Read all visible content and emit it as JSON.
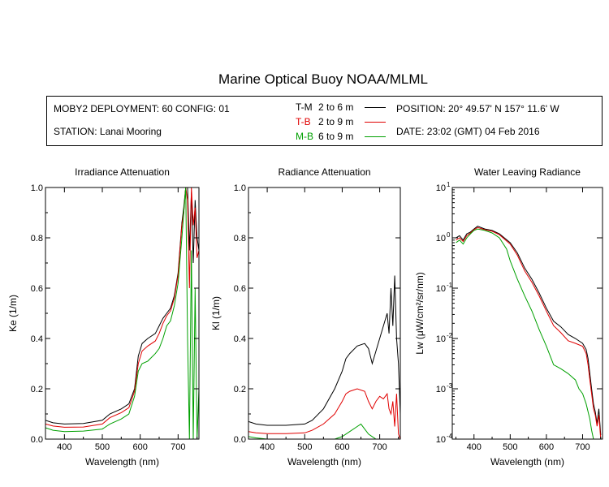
{
  "title": "Marine Optical Buoy NOAA/MLML",
  "info": {
    "deployment": "MOBY2 DEPLOYMENT: 60 CONFIG: 01",
    "station": "STATION: Lanai Mooring",
    "position": "POSITION: 20° 49.57' N   157° 11.6' W",
    "date": "DATE: 23:02 (GMT) 04 Feb 2016",
    "legend": [
      {
        "code": "T-M",
        "range": "2 to 6  m",
        "color": "#000000"
      },
      {
        "code": "T-B",
        "range": "2 to 9  m",
        "color": "#e00000"
      },
      {
        "code": "M-B",
        "range": "6 to 9  m",
        "color": "#00a000"
      }
    ]
  },
  "chart_data": [
    {
      "type": "line",
      "title": "Irradiance Attenuation",
      "xlabel": "Wavelength (nm)",
      "ylabel": "Ke  (1/m)",
      "xlim": [
        350,
        755
      ],
      "ylim": [
        0,
        1
      ],
      "xticks": [
        "400",
        "500",
        "600",
        "700"
      ],
      "yticks": [
        "0.0",
        "0.2",
        "0.4",
        "0.6",
        "0.8",
        "1.0"
      ],
      "series": [
        {
          "color": "#000000",
          "x": [
            350,
            370,
            400,
            450,
            500,
            520,
            550,
            570,
            585,
            595,
            605,
            620,
            640,
            650,
            660,
            670,
            680,
            690,
            700,
            710,
            715,
            720,
            725,
            730,
            735,
            740,
            745,
            750,
            755
          ],
          "y": [
            0.075,
            0.065,
            0.06,
            0.062,
            0.075,
            0.1,
            0.12,
            0.14,
            0.2,
            0.33,
            0.38,
            0.4,
            0.42,
            0.45,
            0.48,
            0.5,
            0.52,
            0.57,
            0.66,
            0.86,
            0.92,
            1.0,
            1.0,
            0.75,
            0.98,
            0.7,
            0.95,
            0.8,
            0.75
          ]
        },
        {
          "color": "#e00000",
          "x": [
            350,
            370,
            400,
            450,
            500,
            520,
            550,
            570,
            585,
            595,
            605,
            620,
            640,
            650,
            660,
            670,
            680,
            690,
            700,
            710,
            715,
            720,
            725,
            730,
            735,
            740,
            745,
            750,
            755
          ],
          "y": [
            0.06,
            0.052,
            0.047,
            0.048,
            0.06,
            0.085,
            0.105,
            0.125,
            0.19,
            0.3,
            0.35,
            0.37,
            0.39,
            0.42,
            0.46,
            0.49,
            0.51,
            0.56,
            0.65,
            0.85,
            0.9,
            1.0,
            0.95,
            0.6,
            1.0,
            0.85,
            0.92,
            0.72,
            0.75
          ]
        },
        {
          "color": "#00a000",
          "x": [
            350,
            370,
            400,
            450,
            500,
            520,
            550,
            570,
            585,
            595,
            605,
            620,
            640,
            650,
            660,
            670,
            680,
            690,
            700,
            710,
            715,
            720,
            725,
            730,
            735,
            740,
            745,
            750,
            755
          ],
          "y": [
            0.045,
            0.035,
            0.03,
            0.032,
            0.04,
            0.06,
            0.08,
            0.1,
            0.17,
            0.27,
            0.3,
            0.31,
            0.34,
            0.36,
            0.4,
            0.45,
            0.47,
            0.53,
            0.62,
            0.8,
            0.9,
            1.0,
            0.4,
            0.0,
            0.75,
            0.0,
            0.6,
            0.0,
            0.2
          ]
        }
      ]
    },
    {
      "type": "line",
      "title": "Radiance Attenuation",
      "xlabel": "Wavelength (nm)",
      "ylabel": "Kl  (1/m)",
      "xlim": [
        350,
        755
      ],
      "ylim": [
        0,
        1
      ],
      "xticks": [
        "400",
        "500",
        "600",
        "700"
      ],
      "yticks": [
        "0.0",
        "0.2",
        "0.4",
        "0.6",
        "0.8",
        "1.0"
      ],
      "series": [
        {
          "color": "#000000",
          "x": [
            350,
            370,
            400,
            450,
            500,
            520,
            550,
            580,
            600,
            610,
            620,
            640,
            660,
            670,
            680,
            690,
            700,
            710,
            720,
            725,
            730,
            735,
            740,
            745,
            750,
            755
          ],
          "y": [
            0.07,
            0.06,
            0.055,
            0.055,
            0.06,
            0.075,
            0.12,
            0.2,
            0.27,
            0.32,
            0.34,
            0.37,
            0.38,
            0.36,
            0.3,
            0.35,
            0.4,
            0.45,
            0.5,
            0.42,
            0.6,
            0.45,
            0.65,
            0.4,
            0.3,
            0.1
          ]
        },
        {
          "color": "#e00000",
          "x": [
            350,
            370,
            400,
            450,
            500,
            520,
            550,
            580,
            600,
            610,
            620,
            640,
            660,
            670,
            680,
            690,
            700,
            710,
            720,
            725,
            730,
            735,
            740,
            745,
            750,
            755
          ],
          "y": [
            0.03,
            0.025,
            0.022,
            0.022,
            0.025,
            0.035,
            0.06,
            0.1,
            0.15,
            0.18,
            0.19,
            0.2,
            0.19,
            0.15,
            0.12,
            0.15,
            0.17,
            0.16,
            0.18,
            0.12,
            0.1,
            0.15,
            0.05,
            0.18,
            0.02,
            0.0
          ]
        },
        {
          "color": "#00a000",
          "x": [
            350,
            370,
            400,
            450,
            500,
            520,
            550,
            580,
            600,
            620,
            640,
            650,
            660,
            670,
            680,
            690,
            700,
            710,
            720,
            730,
            740,
            755
          ],
          "y": [
            0.01,
            0.005,
            0.0,
            0.0,
            0.0,
            0.0,
            0.0,
            0.0,
            0.01,
            0.03,
            0.05,
            0.06,
            0.04,
            0.02,
            0.01,
            0.0,
            0.0,
            0.0,
            0.0,
            0.0,
            0.0,
            0.0
          ]
        }
      ]
    },
    {
      "type": "line",
      "title": "Water Leaving Radiance",
      "xlabel": "Wavelength (nm)",
      "ylabel": "Lw  (μW/cm²/sr/nm)",
      "yscale": "log",
      "xlim": [
        340,
        755
      ],
      "ylim": [
        0.0001,
        10
      ],
      "xticks": [
        "400",
        "500",
        "600",
        "700"
      ],
      "ytick_mantissa": "10",
      "ytick_exponents": [
        "-4",
        "-3",
        "-2",
        "-1",
        "0",
        "1"
      ],
      "series": [
        {
          "color": "#000000",
          "x": [
            350,
            360,
            370,
            380,
            390,
            400,
            410,
            430,
            450,
            470,
            500,
            520,
            540,
            560,
            580,
            600,
            620,
            640,
            660,
            680,
            700,
            710,
            715,
            720,
            725,
            730,
            735,
            740,
            745,
            750
          ],
          "y": [
            1.0,
            1.1,
            0.9,
            1.2,
            1.3,
            1.5,
            1.7,
            1.5,
            1.4,
            1.2,
            0.8,
            0.5,
            0.25,
            0.15,
            0.08,
            0.04,
            0.022,
            0.017,
            0.012,
            0.01,
            0.008,
            0.006,
            0.004,
            0.002,
            0.001,
            0.0005,
            0.00035,
            0.0002,
            0.0004,
            0.00012
          ]
        },
        {
          "color": "#e00000",
          "x": [
            350,
            360,
            370,
            380,
            390,
            400,
            410,
            430,
            450,
            470,
            500,
            520,
            540,
            560,
            580,
            600,
            620,
            640,
            660,
            680,
            700,
            710,
            715,
            720,
            725,
            730,
            735,
            740,
            745,
            750
          ],
          "y": [
            0.9,
            1.0,
            0.85,
            1.1,
            1.25,
            1.45,
            1.6,
            1.45,
            1.35,
            1.15,
            0.75,
            0.45,
            0.22,
            0.13,
            0.07,
            0.035,
            0.018,
            0.013,
            0.009,
            0.008,
            0.007,
            0.005,
            0.003,
            0.0015,
            0.0008,
            0.0004,
            0.0003,
            0.00018,
            0.0003,
            0.0001
          ]
        },
        {
          "color": "#00a000",
          "x": [
            350,
            360,
            370,
            380,
            390,
            400,
            410,
            430,
            450,
            470,
            490,
            500,
            520,
            540,
            560,
            580,
            600,
            620,
            640,
            660,
            680,
            690,
            700,
            710,
            720,
            725,
            730
          ],
          "y": [
            0.8,
            0.9,
            0.75,
            1.0,
            1.2,
            1.4,
            1.5,
            1.4,
            1.25,
            1.0,
            0.6,
            0.35,
            0.15,
            0.07,
            0.035,
            0.015,
            0.007,
            0.003,
            0.0025,
            0.002,
            0.0015,
            0.001,
            0.0008,
            0.0005,
            0.00025,
            0.00015,
            0.0001
          ]
        }
      ]
    }
  ]
}
